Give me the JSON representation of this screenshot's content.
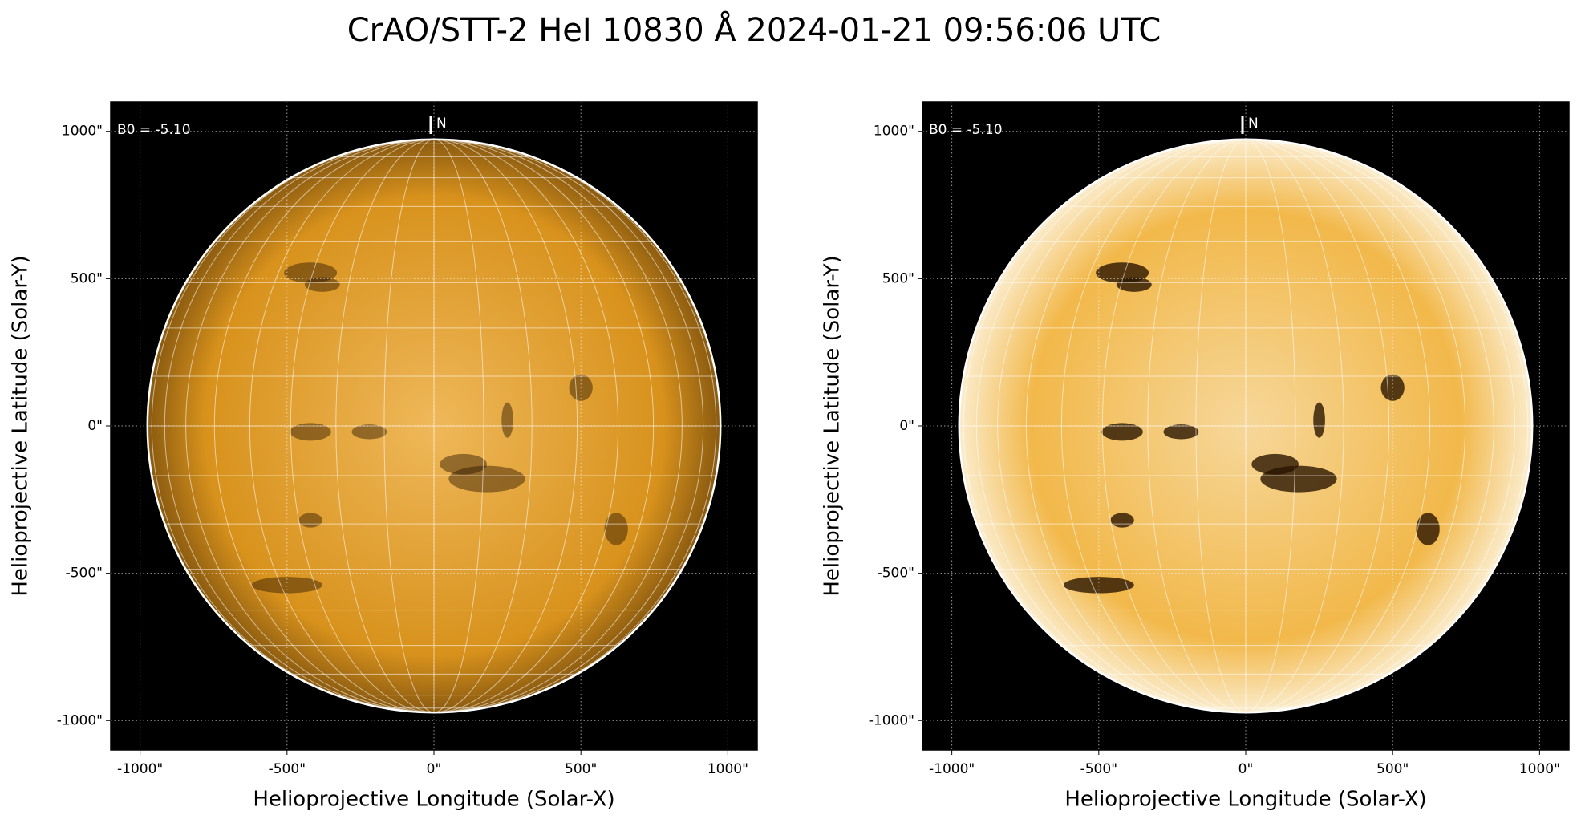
{
  "title": "CrAO/STT-2 HeI 10830 Å 2024-01-21 09:56:06 UTC",
  "chart_data": [
    {
      "type": "image",
      "xlabel": "Helioprojective Longitude (Solar-X)",
      "ylabel": "Helioprojective Latitude (Solar-Y)",
      "xlim": [
        -1100,
        1100
      ],
      "ylim": [
        -1100,
        1100
      ],
      "xticks": [
        {
          "value": -1000,
          "label": "-1000\""
        },
        {
          "value": -500,
          "label": "-500\""
        },
        {
          "value": 0,
          "label": "0\""
        },
        {
          "value": 500,
          "label": "500\""
        },
        {
          "value": 1000,
          "label": "1000\""
        }
      ],
      "yticks": [
        {
          "value": -1000,
          "label": "-1000\""
        },
        {
          "value": -500,
          "label": "-500\""
        },
        {
          "value": 0,
          "label": "0\""
        },
        {
          "value": 500,
          "label": "500\""
        },
        {
          "value": 1000,
          "label": "1000\""
        }
      ],
      "grid": true,
      "rsun": 975,
      "color": "#d8921c",
      "b0_label": "B0 = -5.10",
      "north_label": "N"
    },
    {
      "type": "image",
      "xlabel": "Helioprojective Longitude (Solar-X)",
      "ylabel": "Helioprojective Latitude (Solar-Y)",
      "xlim": [
        -1100,
        1100
      ],
      "ylim": [
        -1100,
        1100
      ],
      "xticks": [
        {
          "value": -1000,
          "label": "-1000\""
        },
        {
          "value": -500,
          "label": "-500\""
        },
        {
          "value": 0,
          "label": "0\""
        },
        {
          "value": 500,
          "label": "500\""
        },
        {
          "value": 1000,
          "label": "1000\""
        }
      ],
      "yticks": [
        {
          "value": -1000,
          "label": "-1000\""
        },
        {
          "value": -500,
          "label": "-500\""
        },
        {
          "value": 0,
          "label": "0\""
        },
        {
          "value": 500,
          "label": "500\""
        },
        {
          "value": 1000,
          "label": "1000\""
        }
      ],
      "grid": true,
      "rsun": 975,
      "color": "#f2b84a",
      "b0_label": "B0 = -5.10",
      "north_label": "N"
    }
  ]
}
